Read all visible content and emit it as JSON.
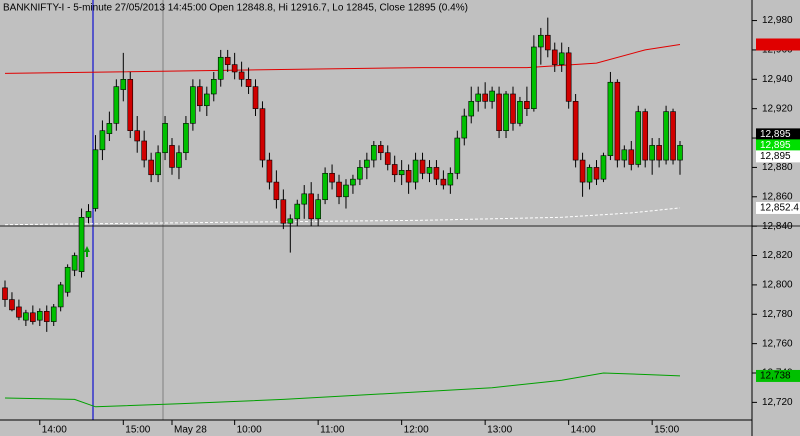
{
  "chart_data": {
    "type": "candlestick",
    "title": "BANKNIFTY-I - 5-minute 27/05/2013 14:45:00 Open 12848.8, Hi 12916.7, Lo 12845, Close 12895 (0.4%)",
    "categories": [
      null,
      null,
      null,
      null,
      null,
      "14:00",
      null,
      null,
      null,
      null,
      null,
      null,
      null,
      null,
      null,
      null,
      null,
      "15:00",
      null,
      null,
      null,
      null,
      null,
      null,
      "May 28",
      null,
      null,
      null,
      null,
      null,
      null,
      null,
      null,
      "10:00",
      null,
      null,
      null,
      null,
      null,
      null,
      null,
      null,
      null,
      null,
      null,
      "11:00",
      null,
      null,
      null,
      null,
      null,
      null,
      null,
      null,
      null,
      null,
      null,
      "12:00",
      null,
      null,
      null,
      null,
      null,
      null,
      null,
      null,
      null,
      null,
      null,
      "13:00",
      null,
      null,
      null,
      null,
      null,
      null,
      null,
      null,
      null,
      null,
      null,
      "14:00",
      null,
      null,
      null,
      null,
      null,
      null,
      null,
      null,
      null,
      null,
      null,
      "15:00",
      null,
      null,
      null,
      null
    ],
    "open": [
      12798,
      12790,
      12785,
      12776,
      12781,
      12776,
      12782,
      12775,
      12785,
      12795,
      12810,
      12809,
      12846,
      12852,
      12892,
      12903,
      12910,
      12933,
      12940,
      12905,
      12898,
      12885,
      12875,
      12890,
      12895,
      12880,
      12890,
      12910,
      12935,
      12922,
      12930,
      12940,
      12955,
      12950,
      12945,
      12940,
      12935,
      12920,
      12885,
      12870,
      12858,
      12842,
      12845,
      12855,
      12862,
      12845,
      12858,
      12876,
      12870,
      12860,
      12868,
      12872,
      12880,
      12885,
      12895,
      12890,
      12882,
      12875,
      12878,
      12870,
      12885,
      12876,
      12880,
      12872,
      12868,
      12876,
      12900,
      12915,
      12925,
      12930,
      12925,
      12930,
      12905,
      12930,
      12910,
      12925,
      12920,
      12962,
      12970,
      12960,
      12950,
      12958,
      12925,
      12885,
      12870,
      12880,
      12872,
      12888,
      12938,
      12885,
      12892,
      12882,
      12918,
      12885,
      12895,
      12885,
      12918,
      12885
    ],
    "high": [
      12803,
      12795,
      12790,
      12783,
      12786,
      12784,
      12786,
      12787,
      12802,
      12814,
      12822,
      12852,
      12855,
      12902,
      12912,
      12918,
      12940,
      12958,
      12945,
      12915,
      12905,
      12890,
      12895,
      12915,
      12900,
      12895,
      12915,
      12940,
      12940,
      12935,
      12945,
      12960,
      12960,
      12958,
      12952,
      12948,
      12940,
      12925,
      12890,
      12878,
      12865,
      12848,
      12858,
      12868,
      12870,
      12862,
      12880,
      12882,
      12875,
      12872,
      12875,
      12885,
      12890,
      12898,
      12898,
      12895,
      12888,
      12885,
      12882,
      12890,
      12890,
      12885,
      12885,
      12878,
      12880,
      12905,
      12920,
      12935,
      12935,
      12938,
      12935,
      12935,
      12932,
      12935,
      12928,
      12935,
      12970,
      12975,
      12982,
      12965,
      12965,
      12962,
      12930,
      12890,
      12882,
      12885,
      12890,
      12945,
      12940,
      12895,
      12898,
      12922,
      12920,
      12900,
      12900,
      12922,
      12920,
      12898
    ],
    "low": [
      12785,
      12782,
      12776,
      12772,
      12773,
      12772,
      12768,
      12772,
      12782,
      12792,
      12806,
      12805,
      12842,
      12850,
      12885,
      12898,
      12905,
      12925,
      12900,
      12890,
      12880,
      12870,
      12870,
      12885,
      12875,
      12872,
      12885,
      12905,
      12918,
      12915,
      12925,
      12935,
      12945,
      12940,
      12935,
      12930,
      12915,
      12880,
      12865,
      12852,
      12838,
      12822,
      12840,
      12845,
      12840,
      12840,
      12855,
      12865,
      12855,
      12852,
      12862,
      12868,
      12872,
      12880,
      12885,
      12878,
      12870,
      12868,
      12862,
      12865,
      12872,
      12870,
      12868,
      12865,
      12862,
      12872,
      12895,
      12910,
      12918,
      12920,
      12920,
      12900,
      12900,
      12905,
      12908,
      12915,
      12918,
      12950,
      12955,
      12945,
      12945,
      12920,
      12880,
      12860,
      12865,
      12868,
      12870,
      12885,
      12880,
      12880,
      12878,
      12880,
      12880,
      12875,
      12880,
      12882,
      12882,
      12875
    ],
    "close": [
      12790,
      12783,
      12778,
      12781,
      12775,
      12782,
      12775,
      12785,
      12800,
      12812,
      12820,
      12846,
      12850,
      12892,
      12905,
      12910,
      12935,
      12940,
      12905,
      12898,
      12885,
      12875,
      12890,
      12910,
      12880,
      12890,
      12910,
      12935,
      12922,
      12930,
      12940,
      12955,
      12950,
      12945,
      12940,
      12935,
      12920,
      12885,
      12870,
      12858,
      12842,
      12845,
      12855,
      12862,
      12845,
      12858,
      12876,
      12870,
      12860,
      12868,
      12872,
      12880,
      12885,
      12895,
      12890,
      12882,
      12875,
      12878,
      12870,
      12885,
      12876,
      12880,
      12872,
      12868,
      12876,
      12900,
      12915,
      12925,
      12930,
      12925,
      12932,
      12905,
      12930,
      12910,
      12925,
      12920,
      12962,
      12970,
      12960,
      12950,
      12958,
      12925,
      12885,
      12870,
      12880,
      12872,
      12888,
      12938,
      12885,
      12892,
      12882,
      12918,
      12885,
      12895,
      12885,
      12918,
      12885,
      12895
    ],
    "up_color": "#00c000",
    "down_color": "#d00000",
    "overlays": [
      {
        "color": "#e00000",
        "x": [
          0,
          15,
          30,
          45,
          60,
          75,
          85,
          92,
          97
        ],
        "values": [
          12944,
          12945,
          12946,
          12947,
          12948,
          12948,
          12951,
          12960,
          12963.7
        ]
      },
      {
        "color": "#ffffff",
        "dashed": true,
        "x": [
          0,
          20,
          40,
          60,
          80,
          90,
          97
        ],
        "values": [
          12841,
          12842,
          12843,
          12844,
          12846,
          12849,
          12852.4
        ]
      },
      {
        "color": "#00a000",
        "x": [
          0,
          10,
          13,
          25,
          40,
          55,
          70,
          80,
          86,
          92,
          97
        ],
        "values": [
          12723,
          12722,
          12717,
          12719,
          12722,
          12726,
          12730,
          12735,
          12740,
          12739,
          12738
        ]
      }
    ],
    "price_tags": [
      {
        "value": 12963.7,
        "label": "12,963.7",
        "color": "#e00000",
        "text_color": "#e00000"
      },
      {
        "value": 12895,
        "label": "12,895",
        "color": "#000000",
        "text_color": "#ffffff"
      },
      {
        "value": 12895,
        "label": "12,895",
        "color": "#00e000",
        "text_color": "#ffffff"
      },
      {
        "value": 12895,
        "label": "12,895",
        "color": "#ffffff",
        "text_color": "#000000"
      },
      {
        "value": 12852.4,
        "label": "12,852.4",
        "color": "#ffffff",
        "text_color": "#000000"
      },
      {
        "value": 12738,
        "label": "12,738",
        "color": "#00c000",
        "text_color": "#000000"
      }
    ],
    "ylim": [
      12708,
      12994
    ],
    "yticks": [
      {
        "value": 12720,
        "label": "12,720"
      },
      {
        "value": 12740,
        "label": "12,740"
      },
      {
        "value": 12760,
        "label": "12,760"
      },
      {
        "value": 12780,
        "label": "12,780"
      },
      {
        "value": 12800,
        "label": "12,800"
      },
      {
        "value": 12820,
        "label": "12,820"
      },
      {
        "value": 12840,
        "label": "12,840"
      },
      {
        "value": 12860,
        "label": "12,860"
      },
      {
        "value": 12880,
        "label": "12,880"
      },
      {
        "value": 12900,
        "label": "12,900"
      },
      {
        "value": 12920,
        "label": "12,920"
      },
      {
        "value": 12940,
        "label": "12,940"
      },
      {
        "value": 12960,
        "label": "12,960"
      },
      {
        "value": 12980,
        "label": "12,980"
      }
    ]
  }
}
